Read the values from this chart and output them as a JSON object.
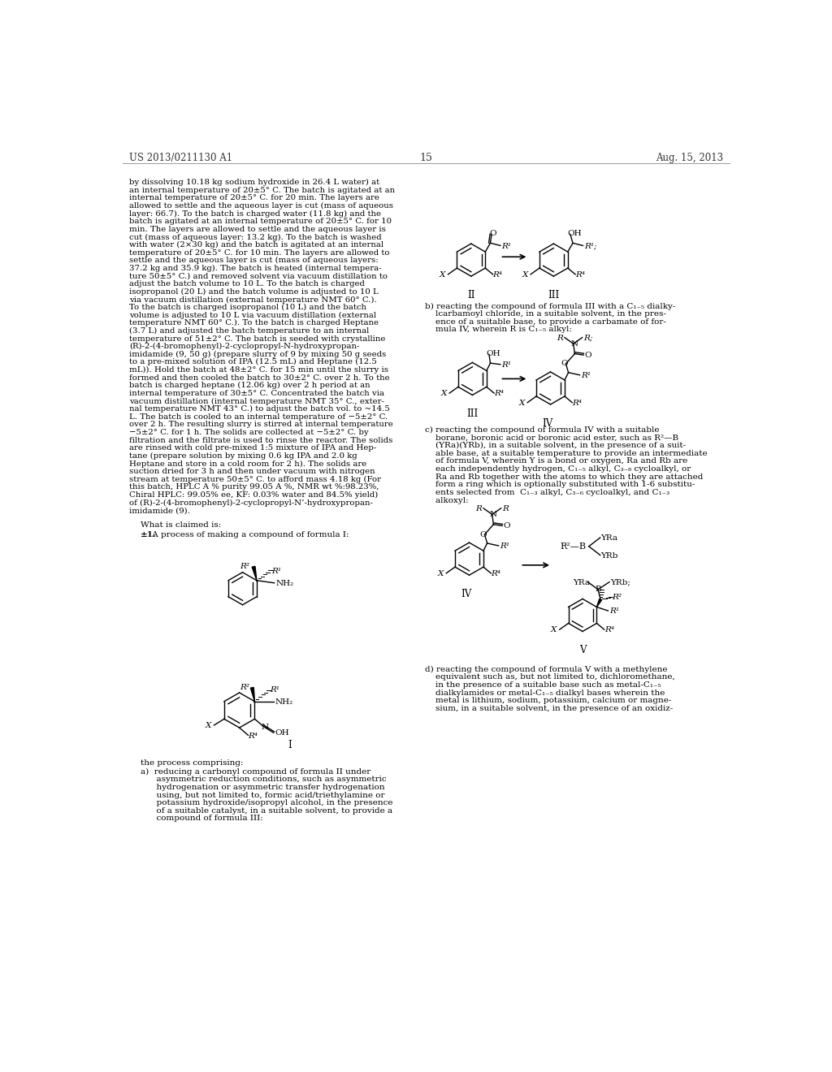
{
  "page_number": "15",
  "patent_number": "US 2013/0211130 A1",
  "patent_date": "Aug. 15, 2013",
  "background_color": "#ffffff",
  "left_col_lines": [
    "by dissolving 10.18 kg sodium hydroxide in 26.4 L water) at",
    "an internal temperature of 20±5° C. The batch is agitated at an",
    "internal temperature of 20±5° C. for 20 min. The layers are",
    "allowed to settle and the aqueous layer is cut (mass of aqueous",
    "layer: 66.7). To the batch is charged water (11.8 kg) and the",
    "batch is agitated at an internal temperature of 20±5° C. for 10",
    "min. The layers are allowed to settle and the aqueous layer is",
    "cut (mass of aqueous layer: 13.2 kg). To the batch is washed",
    "with water (2×30 kg) and the batch is agitated at an internal",
    "temperature of 20±5° C. for 10 min. The layers are allowed to",
    "settle and the aqueous layer is cut (mass of aqueous layers:",
    "37.2 kg and 35.9 kg). The batch is heated (internal tempera-",
    "ture 50±5° C.) and removed solvent via vacuum distillation to",
    "adjust the batch volume to 10 L. To the batch is charged",
    "isopropanol (20 L) and the batch volume is adjusted to 10 L",
    "via vacuum distillation (external temperature NMT 60° C.).",
    "To the batch is charged isopropanol (10 L) and the batch",
    "volume is adjusted to 10 L via vacuum distillation (external",
    "temperature NMT 60° C.). To the batch is charged Heptane",
    "(3.7 L) and adjusted the batch temperature to an internal",
    "temperature of 51±2° C. The batch is seeded with crystalline",
    "(R)-2-(4-bromophenyl)-2-cyclopropyl-N-hydroxypropan-",
    "imidamide (9, 50 g) (prepare slurry of 9 by mixing 50 g seeds",
    "to a pre-mixed solution of IPA (12.5 mL) and Heptane (12.5",
    "mL)). Hold the batch at 48±2° C. for 15 min until the slurry is",
    "formed and then cooled the batch to 30±2° C. over 2 h. To the",
    "batch is charged heptane (12.06 kg) over 2 h period at an",
    "internal temperature of 30±5° C. Concentrated the batch via",
    "vacuum distillation (internal temperature NMT 35° C., exter-",
    "nal temperature NMT 43° C.) to adjust the batch vol. to ~14.5",
    "L. The batch is cooled to an internal temperature of −5±2° C.",
    "over 2 h. The resulting slurry is stirred at internal temperature",
    "−5±2° C. for 1 h. The solids are collected at −5±2° C. by",
    "filtration and the filtrate is used to rinse the reactor. The solids",
    "are rinsed with cold pre-mixed 1:5 mixture of IPA and Hep-",
    "tane (prepare solution by mixing 0.6 kg IPA and 2.0 kg",
    "Heptane and store in a cold room for 2 h). The solids are",
    "suction dried for 3 h and then under vacuum with nitrogen",
    "stream at temperature 50±5° C. to afford mass 4.18 kg (For",
    "this batch, HPLC A % purity 99.05 A %, NMR wt %:98.23%,",
    "Chiral HPLC: 99.05% ee, KF: 0.03% water and 84.5% yield)",
    "of (R)-2-(4-bromophenyl)-2-cyclopropyl-N’-hydroxypropan-",
    "imidamide (9)."
  ],
  "step_b_lines": [
    "b) reacting the compound of formula III with a C₁₋₅ dialky-",
    "    lcarbamoyl chloride, in a suitable solvent, in the pres-",
    "    ence of a suitable base, to provide a carbamate of for-",
    "    mula IV, wherein R is C₁₋₅ alkyl:"
  ],
  "step_c_lines": [
    "c) reacting the compound of formula IV with a suitable",
    "    borane, boronic acid or boronic acid ester, such as R²—B",
    "    (YRa)(YRb), in a suitable solvent, in the presence of a suit-",
    "    able base, at a suitable temperature to provide an intermediate",
    "    of formula V, wherein Y is a bond or oxygen, Ra and Rb are",
    "    each independently hydrogen, C₁₋₅ alkyl, C₃₋₈ cycloalkyl, or",
    "    Ra and Rb together with the atoms to which they are attached",
    "    form a ring which is optionally substituted with 1-6 substitu-",
    "    ents selected from  C₁₋₃ alkyl, C₃₋₆ cycloalkyl, and C₁₋₃",
    "    alkoxyl:"
  ],
  "step_d_lines": [
    "d) reacting the compound of formula V with a methylene",
    "    equivalent such as, but not limited to, dichloromethane,",
    "    in the presence of a suitable base such as metal-C₁₋₅",
    "    dialkylamides or metal-C₁₋₅ dialkyl bases wherein the",
    "    metal is lithium, sodium, potassium, calcium or magne-",
    "    sium, in a suitable solvent, in the presence of an oxidiz-"
  ],
  "step_a_lines": [
    "a)  reducing a carbonyl compound of formula II under",
    "      asymmetric reduction conditions, such as asymmetric",
    "      hydrogenation or asymmetric transfer hydrogenation",
    "      using, but not limited to, formic acid/triethylamine or",
    "      potassium hydroxide/isopropyl alcohol, in the presence",
    "      of a suitable catalyst, in a suitable solvent, to provide a",
    "      compound of formula III:"
  ]
}
